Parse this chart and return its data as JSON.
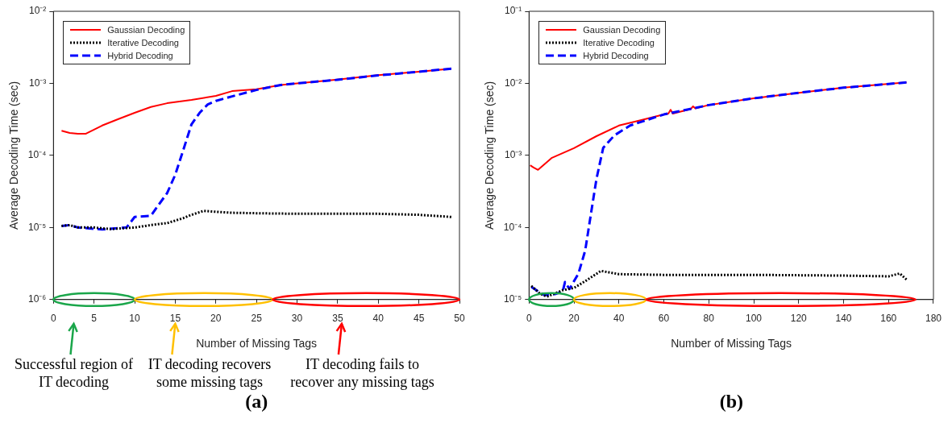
{
  "chart_data": [
    {
      "type": "line",
      "title": "(a)",
      "xlabel": "Number of Missing Tags",
      "ylabel": "Average Decoding Time (sec)",
      "xlim": [
        0,
        50
      ],
      "xticks": [
        0,
        5,
        10,
        15,
        20,
        25,
        30,
        35,
        40,
        45,
        50
      ],
      "ylim": [
        1e-06,
        0.01
      ],
      "yticks": [
        {
          "value": 1e-06,
          "label": "10⁻⁶"
        },
        {
          "value": 1e-05,
          "label": "10⁻⁵"
        },
        {
          "value": 0.0001,
          "label": "10⁻⁴"
        },
        {
          "value": 0.001,
          "label": "10⁻³"
        },
        {
          "value": 0.01,
          "label": "10⁻²"
        }
      ],
      "log": "y",
      "legend": "top left",
      "annotations": [
        "Successful region of IT decoding",
        "IT decoding recovers some missing tags",
        "IT decoding fails to recover any missing tags"
      ],
      "series": [
        {
          "name": "Gaussian Decoding",
          "color": "#ff0000",
          "line_style": "solid",
          "x": [
            1,
            2,
            3,
            4,
            6,
            8,
            10,
            12,
            14,
            17,
            20,
            22,
            25,
            28,
            30,
            35,
            40,
            45,
            49
          ],
          "values": [
            0.00022,
            0.000205,
            0.0002,
            0.0002,
            0.00026,
            0.00032,
            0.00039,
            0.00047,
            0.00053,
            0.00059,
            0.00067,
            0.00078,
            0.00083,
            0.00095,
            0.001,
            0.00113,
            0.0013,
            0.00145,
            0.0016
          ]
        },
        {
          "name": "Iterative Decoding",
          "color": "#000000",
          "line_style": "dotted",
          "x": [
            1,
            2,
            3,
            5,
            7,
            10,
            12,
            14,
            16,
            17,
            18.5,
            20,
            22,
            26,
            30,
            35,
            40,
            45,
            49
          ],
          "values": [
            1.05e-05,
            1.08e-05,
            1e-05,
            1e-05,
            9.5e-06,
            1e-05,
            1.08e-05,
            1.15e-05,
            1.35e-05,
            1.5e-05,
            1.7e-05,
            1.65e-05,
            1.6e-05,
            1.57e-05,
            1.55e-05,
            1.55e-05,
            1.55e-05,
            1.5e-05,
            1.4e-05
          ]
        },
        {
          "name": "Hybrid Decoding",
          "color": "#0000ff",
          "line_style": "dashed",
          "x": [
            1,
            2,
            3,
            6,
            9,
            10,
            12,
            13,
            14,
            15,
            16,
            17,
            18,
            19,
            20,
            22,
            25,
            28,
            30,
            35,
            40,
            45,
            49
          ],
          "values": [
            1.05e-05,
            1.08e-05,
            1e-05,
            9.4e-06,
            1e-05,
            1.4e-05,
            1.45e-05,
            2.1e-05,
            3e-05,
            5.4e-05,
            0.00012,
            0.00027,
            0.00039,
            0.00051,
            0.00057,
            0.00066,
            0.00081,
            0.00095,
            0.001,
            0.00112,
            0.00129,
            0.00145,
            0.0016
          ]
        }
      ]
    },
    {
      "type": "line",
      "title": "(b)",
      "xlabel": "Number of Missing Tags",
      "ylabel": "Average Decoding Time (sec)",
      "xlim": [
        0,
        180
      ],
      "xticks": [
        0,
        20,
        40,
        60,
        80,
        100,
        120,
        140,
        160,
        180
      ],
      "ylim": [
        1e-05,
        0.1
      ],
      "yticks": [
        {
          "value": 1e-05,
          "label": "10⁻⁵"
        },
        {
          "value": 0.0001,
          "label": "10⁻⁴"
        },
        {
          "value": 0.001,
          "label": "10⁻³"
        },
        {
          "value": 0.01,
          "label": "10⁻²"
        },
        {
          "value": 0.1,
          "label": "10⁻¹"
        }
      ],
      "log": "y",
      "legend": "top left",
      "series": [
        {
          "name": "Gaussian Decoding",
          "color": "#ff0000",
          "line_style": "solid",
          "x": [
            0.5,
            2,
            4,
            10,
            20,
            30,
            40,
            50,
            60,
            62,
            63,
            64,
            72,
            73,
            74,
            80,
            100,
            120,
            140,
            168
          ],
          "values": [
            0.00073,
            0.00068,
            0.00063,
            0.00092,
            0.00126,
            0.00185,
            0.0026,
            0.0031,
            0.0037,
            0.0038,
            0.0043,
            0.0038,
            0.0044,
            0.0048,
            0.0045,
            0.005,
            0.0062,
            0.0074,
            0.0087,
            0.0103
          ]
        },
        {
          "name": "Iterative Decoding",
          "color": "#000000",
          "line_style": "dotted",
          "x": [
            1,
            5,
            8,
            15,
            20,
            25,
            32,
            40,
            60,
            100,
            140,
            160,
            165,
            168
          ],
          "values": [
            1.55e-05,
            1.2e-05,
            1.1e-05,
            1.35e-05,
            1.45e-05,
            1.8e-05,
            2.5e-05,
            2.25e-05,
            2.2e-05,
            2.2e-05,
            2.15e-05,
            2.1e-05,
            2.3e-05,
            1.9e-05
          ]
        },
        {
          "name": "Hybrid Decoding",
          "color": "#0000ff",
          "line_style": "dashed",
          "x": [
            1,
            4,
            7,
            12,
            15,
            16,
            18,
            22,
            25,
            28,
            30,
            33,
            38,
            45,
            55,
            60,
            80,
            100,
            120,
            140,
            168
          ],
          "values": [
            1.5e-05,
            1.3e-05,
            1.15e-05,
            1.2e-05,
            1.3e-05,
            1.75e-05,
            1.4e-05,
            2.3e-05,
            4.8e-05,
            0.00019,
            0.00047,
            0.00127,
            0.0019,
            0.0026,
            0.0033,
            0.0037,
            0.005,
            0.0062,
            0.0074,
            0.0087,
            0.0103
          ]
        }
      ]
    }
  ]
}
